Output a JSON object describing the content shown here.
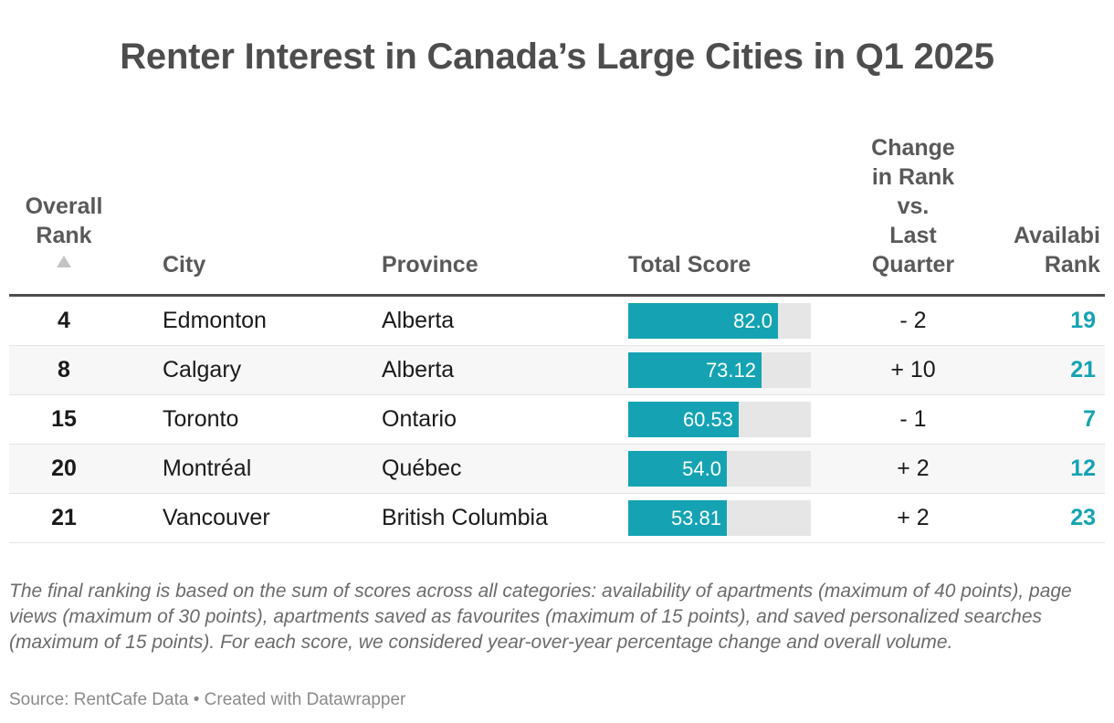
{
  "title": "Renter Interest in Canada’s Large Cities in Q1 2025",
  "headers": {
    "rank_line1": "Overall",
    "rank_line2": "Rank",
    "city": "City",
    "province": "Province",
    "total_score": "Total Score",
    "change_line1": "Change",
    "change_line2": "in Rank",
    "change_line3": "vs.",
    "change_line4": "Last",
    "change_line5": "Quarter",
    "avail_line1": "Availabi",
    "avail_line2": "Rank"
  },
  "sort_icon": "sort-ascending-triangle-icon",
  "colors": {
    "bar": "#15a3b3",
    "track": "#e6e6e6",
    "avail_text": "#15a3b3"
  },
  "chart_data": {
    "type": "table",
    "score_max": 100,
    "columns": [
      "Overall Rank",
      "City",
      "Province",
      "Total Score",
      "Change in Rank vs. Last Quarter",
      "Availability Rank"
    ],
    "rows": [
      {
        "rank": "4",
        "city": "Edmonton",
        "province": "Alberta",
        "score": 82.0,
        "score_label": "82.0",
        "change": "- 2",
        "avail_rank": "19"
      },
      {
        "rank": "8",
        "city": "Calgary",
        "province": "Alberta",
        "score": 73.12,
        "score_label": "73.12",
        "change": "+ 10",
        "avail_rank": "21"
      },
      {
        "rank": "15",
        "city": "Toronto",
        "province": "Ontario",
        "score": 60.53,
        "score_label": "60.53",
        "change": "- 1",
        "avail_rank": "7"
      },
      {
        "rank": "20",
        "city": "Montréal",
        "province": "Québec",
        "score": 54.0,
        "score_label": "54.0",
        "change": "+ 2",
        "avail_rank": "12"
      },
      {
        "rank": "21",
        "city": "Vancouver",
        "province": "British Columbia",
        "score": 53.81,
        "score_label": "53.81",
        "change": "+ 2",
        "avail_rank": "23"
      }
    ]
  },
  "footnote": "The final ranking is based on the sum of scores across all categories: availability of apartments (maximum of 40 points), page views (maximum of 30 points), apartments saved as favourites (maximum of 15 points), and saved personalized searches (maximum of 15 points). For each score, we considered year-over-year percentage change and overall volume.",
  "source": "Source: RentCafe Data • Created with Datawrapper"
}
